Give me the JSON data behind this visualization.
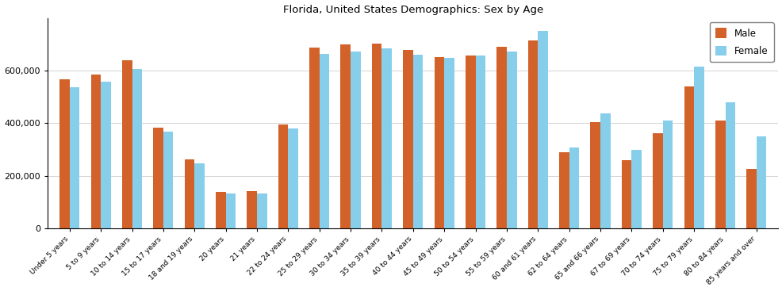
{
  "title": "Florida, United States Demographics: Sex by Age",
  "categories": [
    "Under 5 years",
    "5 to 9 years",
    "10 to 14 years",
    "15 to 17 years",
    "18 and 19 years",
    "20 years",
    "21 years",
    "22 to 24 years",
    "25 to 29 years",
    "30 to 34 years",
    "35 to 39 years",
    "40 to 44 years",
    "45 to 49 years",
    "50 to 54 years",
    "55 to 59 years",
    "60 and 61 years",
    "62 to 64 years",
    "65 and 66 years",
    "67 to 69 years",
    "70 to 74 years",
    "75 to 79 years",
    "80 to 84 years",
    "85 years and over"
  ],
  "male": [
    567000,
    585000,
    638000,
    383000,
    262000,
    137000,
    140000,
    395000,
    688000,
    698000,
    703000,
    678000,
    650000,
    656000,
    690000,
    715000,
    290000,
    403000,
    258000,
    360000,
    540000,
    410000,
    225000
  ],
  "female": [
    537000,
    557000,
    606000,
    368000,
    248000,
    131000,
    132000,
    378000,
    662000,
    672000,
    683000,
    660000,
    648000,
    658000,
    672000,
    750000,
    307000,
    437000,
    298000,
    410000,
    614000,
    478000,
    350000
  ],
  "male_color": "#d2622a",
  "female_color": "#87ceeb",
  "ylim": [
    0,
    800000
  ],
  "yticks": [
    0,
    200000,
    400000,
    600000
  ],
  "ytick_labels": [
    "0",
    "200,000",
    "400,000",
    "600,000"
  ],
  "bar_width": 0.32,
  "figsize": [
    9.87,
    3.67
  ],
  "dpi": 100
}
